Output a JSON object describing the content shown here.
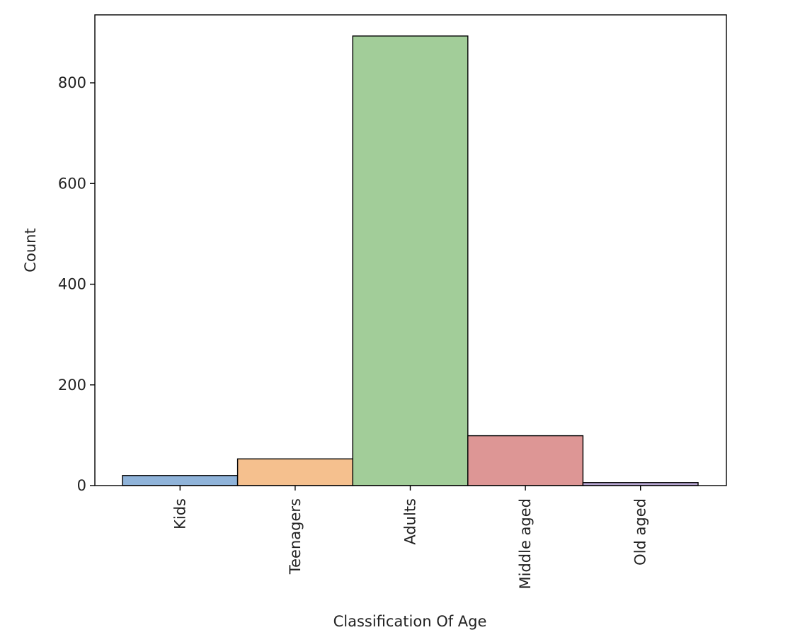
{
  "chart_data": {
    "type": "bar",
    "title": "",
    "xlabel": "Classification Of Age",
    "ylabel": "Count",
    "categories": [
      "Kids",
      "Teenagers",
      "Adults",
      "Middle aged",
      "Old aged"
    ],
    "values": [
      20,
      53,
      893,
      99,
      6
    ],
    "colors": [
      "#8fb3d9",
      "#f5c08e",
      "#a2cd99",
      "#dd9695",
      "#b5a4cf"
    ],
    "ylim": [
      0,
      935
    ],
    "yticks": [
      0,
      200,
      400,
      600,
      800
    ],
    "grid": false,
    "legend": "none"
  }
}
